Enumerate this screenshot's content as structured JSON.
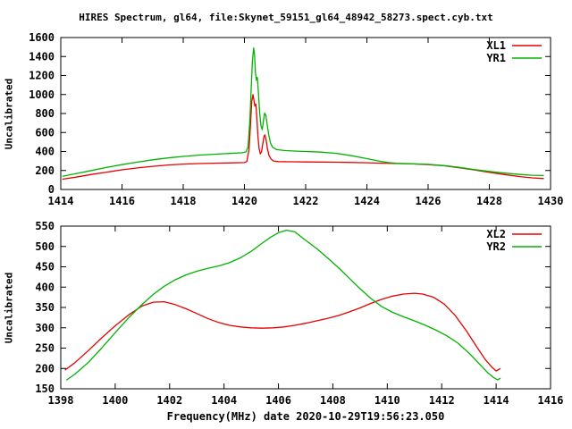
{
  "title": "HIRES Spectrum, gl64, file:Skynet_59151_gl64_48942_58273.spect.cyb.txt",
  "xlabel": "Frequency(MHz) date 2020-10-29T19:56:23.050",
  "colors": {
    "background": "#ffffff",
    "axis": "#000000",
    "xl_red": "#e60000",
    "yr_green": "#00b300"
  },
  "chart_data": [
    {
      "type": "line",
      "panel": "top",
      "ylabel": "Uncalibrated",
      "xlim": [
        1414,
        1430
      ],
      "ylim": [
        0,
        1600
      ],
      "xticks": [
        1414,
        1416,
        1418,
        1420,
        1422,
        1424,
        1426,
        1428,
        1430
      ],
      "yticks": [
        0,
        200,
        400,
        600,
        800,
        1000,
        1200,
        1400,
        1600
      ],
      "grid": false,
      "legend_position": "top-right",
      "series": [
        {
          "name": "XL1",
          "color": "#e60000",
          "points": [
            [
              1414.05,
              108
            ],
            [
              1414.5,
              130
            ],
            [
              1415,
              158
            ],
            [
              1415.5,
              183
            ],
            [
              1416,
              207
            ],
            [
              1416.5,
              227
            ],
            [
              1417,
              244
            ],
            [
              1417.5,
              258
            ],
            [
              1418,
              267
            ],
            [
              1418.5,
              273
            ],
            [
              1419,
              277
            ],
            [
              1419.5,
              280
            ],
            [
              1420,
              283
            ],
            [
              1420.08,
              295
            ],
            [
              1420.15,
              420
            ],
            [
              1420.2,
              700
            ],
            [
              1420.24,
              930
            ],
            [
              1420.28,
              1000
            ],
            [
              1420.31,
              940
            ],
            [
              1420.34,
              880
            ],
            [
              1420.37,
              900
            ],
            [
              1420.4,
              780
            ],
            [
              1420.44,
              560
            ],
            [
              1420.48,
              430
            ],
            [
              1420.52,
              375
            ],
            [
              1420.56,
              400
            ],
            [
              1420.6,
              480
            ],
            [
              1420.64,
              560
            ],
            [
              1420.67,
              575
            ],
            [
              1420.71,
              520
            ],
            [
              1420.75,
              430
            ],
            [
              1420.8,
              360
            ],
            [
              1420.87,
              320
            ],
            [
              1420.95,
              300
            ],
            [
              1421.1,
              294
            ],
            [
              1421.5,
              292
            ],
            [
              1422,
              290
            ],
            [
              1423,
              287
            ],
            [
              1424,
              281
            ],
            [
              1424.5,
              277
            ],
            [
              1425,
              273
            ],
            [
              1425.5,
              269
            ],
            [
              1426,
              262
            ],
            [
              1426.5,
              250
            ],
            [
              1427,
              230
            ],
            [
              1427.5,
              206
            ],
            [
              1428,
              180
            ],
            [
              1428.5,
              157
            ],
            [
              1429,
              136
            ],
            [
              1429.4,
              122
            ],
            [
              1429.78,
              115
            ]
          ]
        },
        {
          "name": "YR1",
          "color": "#00b300",
          "points": [
            [
              1414.05,
              138
            ],
            [
              1414.5,
              168
            ],
            [
              1415,
              200
            ],
            [
              1415.5,
              232
            ],
            [
              1416,
              262
            ],
            [
              1416.5,
              288
            ],
            [
              1417,
              312
            ],
            [
              1417.5,
              332
            ],
            [
              1418,
              348
            ],
            [
              1418.5,
              361
            ],
            [
              1419,
              371
            ],
            [
              1419.5,
              379
            ],
            [
              1419.9,
              386
            ],
            [
              1420.05,
              395
            ],
            [
              1420.12,
              450
            ],
            [
              1420.18,
              750
            ],
            [
              1420.22,
              1050
            ],
            [
              1420.26,
              1350
            ],
            [
              1420.3,
              1490
            ],
            [
              1420.33,
              1420
            ],
            [
              1420.36,
              1230
            ],
            [
              1420.39,
              1150
            ],
            [
              1420.42,
              1180
            ],
            [
              1420.46,
              1000
            ],
            [
              1420.5,
              800
            ],
            [
              1420.54,
              670
            ],
            [
              1420.58,
              630
            ],
            [
              1420.62,
              720
            ],
            [
              1420.66,
              805
            ],
            [
              1420.7,
              780
            ],
            [
              1420.74,
              690
            ],
            [
              1420.79,
              580
            ],
            [
              1420.85,
              490
            ],
            [
              1420.92,
              445
            ],
            [
              1421.05,
              420
            ],
            [
              1421.3,
              410
            ],
            [
              1421.7,
              404
            ],
            [
              1422,
              400
            ],
            [
              1422.5,
              393
            ],
            [
              1423,
              380
            ],
            [
              1423.5,
              356
            ],
            [
              1424,
              325
            ],
            [
              1424.4,
              298
            ],
            [
              1424.7,
              283
            ],
            [
              1425,
              275
            ],
            [
              1425.5,
              270
            ],
            [
              1426,
              264
            ],
            [
              1426.5,
              252
            ],
            [
              1427,
              233
            ],
            [
              1427.5,
              210
            ],
            [
              1428,
              190
            ],
            [
              1428.5,
              172
            ],
            [
              1429,
              158
            ],
            [
              1429.4,
              150
            ],
            [
              1429.78,
              147
            ]
          ]
        }
      ]
    },
    {
      "type": "line",
      "panel": "bottom",
      "ylabel": "Uncalibrated",
      "xlim": [
        1398,
        1416
      ],
      "ylim": [
        150,
        550
      ],
      "xticks": [
        1398,
        1400,
        1402,
        1404,
        1406,
        1408,
        1410,
        1412,
        1414,
        1416
      ],
      "yticks": [
        150,
        200,
        250,
        300,
        350,
        400,
        450,
        500,
        550
      ],
      "grid": false,
      "legend_position": "top-right",
      "series": [
        {
          "name": "XL2",
          "color": "#e60000",
          "points": [
            [
              1398.15,
              196
            ],
            [
              1398.5,
              213
            ],
            [
              1399,
              243
            ],
            [
              1399.5,
              275
            ],
            [
              1400,
              305
            ],
            [
              1400.5,
              332
            ],
            [
              1401,
              354
            ],
            [
              1401.4,
              363
            ],
            [
              1401.8,
              364
            ],
            [
              1402.2,
              357
            ],
            [
              1402.6,
              347
            ],
            [
              1403,
              335
            ],
            [
              1403.4,
              323
            ],
            [
              1403.8,
              313
            ],
            [
              1404.2,
              306
            ],
            [
              1404.6,
              302
            ],
            [
              1405,
              300
            ],
            [
              1405.4,
              299
            ],
            [
              1405.8,
              300
            ],
            [
              1406.2,
              302
            ],
            [
              1406.6,
              306
            ],
            [
              1407,
              311
            ],
            [
              1407.4,
              317
            ],
            [
              1407.8,
              323
            ],
            [
              1408.2,
              330
            ],
            [
              1408.6,
              339
            ],
            [
              1409,
              349
            ],
            [
              1409.4,
              360
            ],
            [
              1409.8,
              370
            ],
            [
              1410.2,
              378
            ],
            [
              1410.6,
              383
            ],
            [
              1411,
              385
            ],
            [
              1411.3,
              383
            ],
            [
              1411.7,
              375
            ],
            [
              1412.1,
              358
            ],
            [
              1412.5,
              330
            ],
            [
              1412.9,
              293
            ],
            [
              1413.3,
              252
            ],
            [
              1413.6,
              222
            ],
            [
              1413.85,
              203
            ],
            [
              1414,
              194
            ],
            [
              1414.16,
              200
            ]
          ]
        },
        {
          "name": "YR2",
          "color": "#00b300",
          "points": [
            [
              1398.2,
              171
            ],
            [
              1398.5,
              185
            ],
            [
              1399,
              214
            ],
            [
              1399.5,
              250
            ],
            [
              1400,
              288
            ],
            [
              1400.5,
              325
            ],
            [
              1401,
              358
            ],
            [
              1401.4,
              382
            ],
            [
              1401.8,
              402
            ],
            [
              1402.2,
              418
            ],
            [
              1402.6,
              430
            ],
            [
              1403,
              439
            ],
            [
              1403.4,
              446
            ],
            [
              1403.8,
              452
            ],
            [
              1404.2,
              460
            ],
            [
              1404.6,
              472
            ],
            [
              1405,
              488
            ],
            [
              1405.4,
              508
            ],
            [
              1405.7,
              522
            ],
            [
              1406,
              534
            ],
            [
              1406.3,
              540
            ],
            [
              1406.6,
              536
            ],
            [
              1407,
              515
            ],
            [
              1407.4,
              495
            ],
            [
              1407.8,
              472
            ],
            [
              1408.2,
              448
            ],
            [
              1408.6,
              422
            ],
            [
              1409,
              396
            ],
            [
              1409.4,
              372
            ],
            [
              1409.8,
              352
            ],
            [
              1410.2,
              338
            ],
            [
              1410.6,
              327
            ],
            [
              1411,
              317
            ],
            [
              1411.4,
              306
            ],
            [
              1411.8,
              294
            ],
            [
              1412.2,
              280
            ],
            [
              1412.6,
              262
            ],
            [
              1413,
              238
            ],
            [
              1413.4,
              210
            ],
            [
              1413.7,
              189
            ],
            [
              1413.9,
              178
            ],
            [
              1414.05,
              172
            ],
            [
              1414.16,
              176
            ]
          ]
        }
      ]
    }
  ]
}
